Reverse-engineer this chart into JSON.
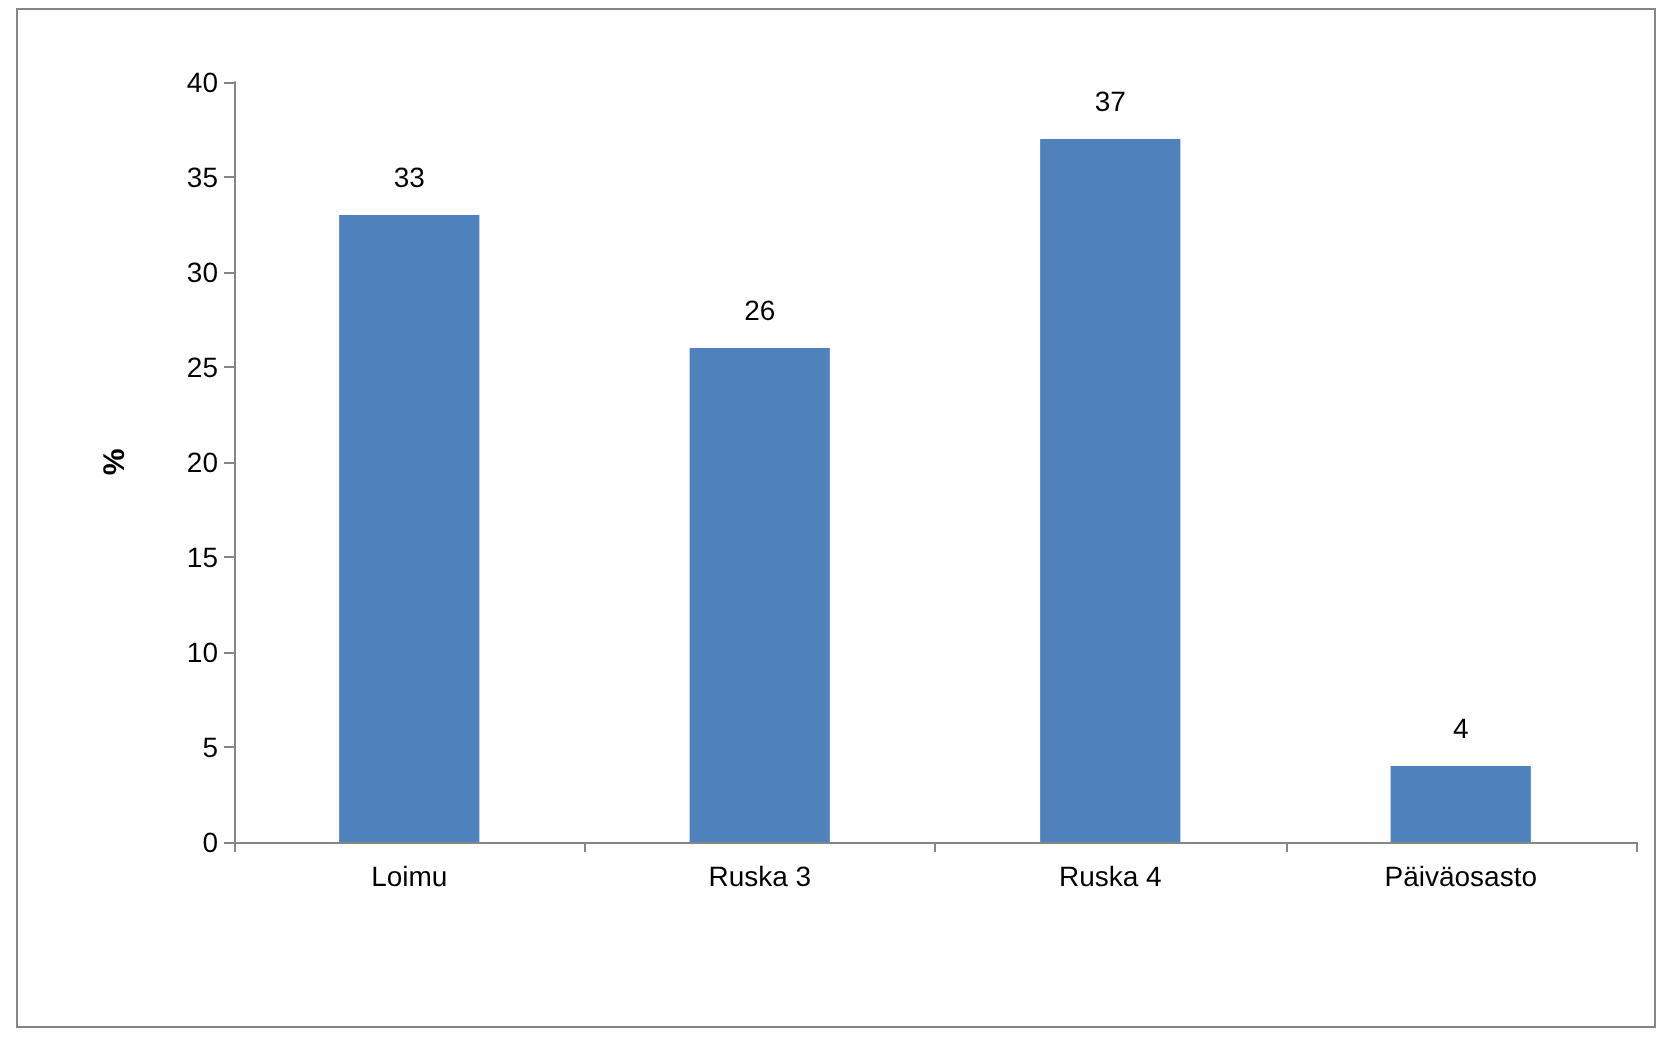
{
  "chart_data": {
    "type": "bar",
    "ylabel": "%",
    "categories": [
      "Loimu",
      "Ruska 3",
      "Ruska 4",
      "Päiväosasto"
    ],
    "series": [
      {
        "color": "#4f81bd",
        "values": [
          33,
          26,
          37,
          4
        ]
      }
    ],
    "ylim": [
      0,
      40
    ],
    "yticks": [
      0,
      5,
      10,
      15,
      20,
      25,
      30,
      35,
      40
    ],
    "grid": false,
    "data_labels": true
  }
}
